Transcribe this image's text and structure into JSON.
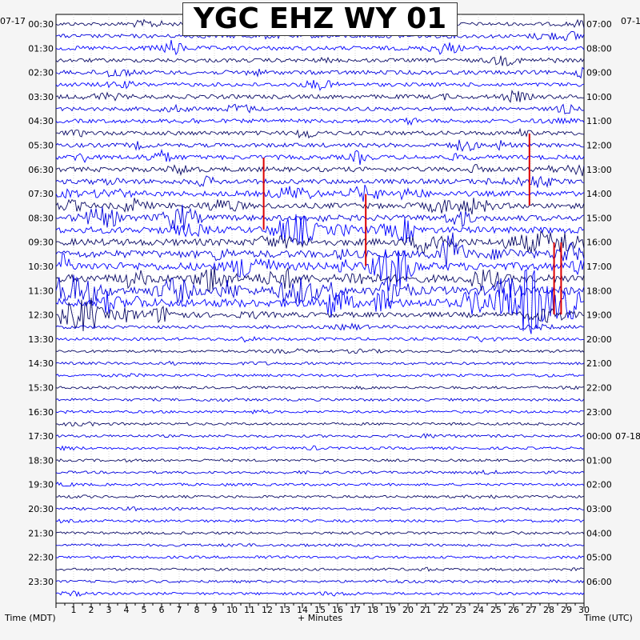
{
  "chart_data": {
    "type": "line",
    "title": "YGC EHZ WY 01",
    "xlabel": "+ Minutes",
    "left_axis_label": "Time (MDT)",
    "right_axis_label": "Time (UTC)",
    "left_date": "07-17",
    "right_date": "07-1",
    "right_date_rollover": "07-18",
    "x_ticks": [
      1,
      2,
      3,
      4,
      5,
      6,
      7,
      8,
      9,
      10,
      11,
      12,
      13,
      14,
      15,
      16,
      17,
      18,
      19,
      20,
      21,
      22,
      23,
      24,
      25,
      26,
      27,
      28,
      29,
      30
    ],
    "xlim": [
      0,
      30
    ],
    "row_count": 48,
    "row_minutes": 30,
    "left_hour_labels": [
      "00:30",
      "01:30",
      "02:30",
      "03:30",
      "04:30",
      "05:30",
      "06:30",
      "07:30",
      "08:30",
      "09:30",
      "10:30",
      "11:30",
      "12:30",
      "13:30",
      "14:30",
      "15:30",
      "16:30",
      "17:30",
      "18:30",
      "19:30",
      "20:30",
      "21:30",
      "22:30",
      "23:30"
    ],
    "right_hour_labels": [
      "07:00",
      "08:00",
      "09:00",
      "10:00",
      "11:00",
      "12:00",
      "13:00",
      "14:00",
      "15:00",
      "16:00",
      "17:00",
      "18:00",
      "19:00",
      "20:00",
      "21:00",
      "22:00",
      "23:00",
      "00:00",
      "01:00",
      "02:00",
      "03:00",
      "04:00",
      "05:00",
      "06:00"
    ],
    "series_colors": [
      "#0a0a66",
      "#0000dd",
      "#0000ff"
    ],
    "clip_color": "#dd0000",
    "grid": true,
    "activity_level_by_row": [
      0.25,
      0.3,
      0.35,
      0.3,
      0.35,
      0.3,
      0.35,
      0.3,
      0.3,
      0.35,
      0.35,
      0.4,
      0.45,
      0.45,
      0.5,
      0.55,
      0.6,
      0.7,
      0.75,
      0.85,
      0.9,
      0.9,
      0.95,
      1.0,
      0.5,
      0.2,
      0.15,
      0.12,
      0.12,
      0.12,
      0.1,
      0.12,
      0.1,
      0.1,
      0.12,
      0.1,
      0.1,
      0.1,
      0.1,
      0.1,
      0.1,
      0.1,
      0.1,
      0.1,
      0.1,
      0.1,
      0.1,
      0.1
    ],
    "clipped_events": [
      {
        "row": 14,
        "minute": 11.8
      },
      {
        "row": 17,
        "minute": 17.6
      },
      {
        "row": 21,
        "minute": 28.3
      },
      {
        "row": 21,
        "minute": 28.7
      },
      {
        "row": 12,
        "minute": 26.9
      }
    ]
  }
}
